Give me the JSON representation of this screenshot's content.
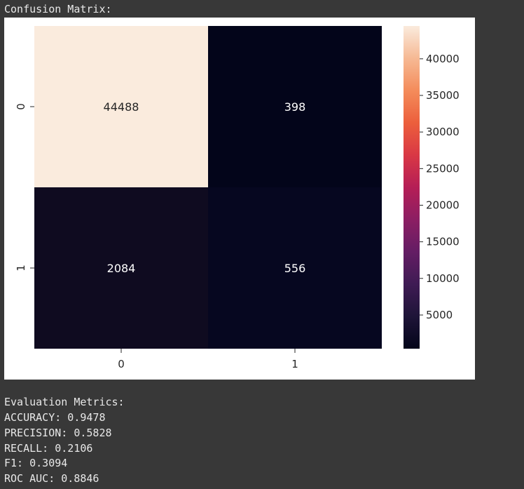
{
  "output": {
    "heading": "Confusion Matrix:",
    "metrics_heading": "Evaluation Metrics:",
    "metrics": [
      "ACCURACY: 0.9478",
      "PRECISION: 0.5828",
      "RECALL: 0.2106",
      "F1: 0.3094",
      "ROC AUC: 0.8846"
    ]
  },
  "chart_data": {
    "type": "heatmap",
    "title": "",
    "xlabel": "",
    "ylabel": "",
    "x_categories": [
      "0",
      "1"
    ],
    "y_categories": [
      "0",
      "1"
    ],
    "values": [
      [
        44488,
        398
      ],
      [
        2084,
        556
      ]
    ],
    "colormap": "rocket",
    "colorbar": {
      "range": [
        398,
        44488
      ],
      "ticks": [
        5000,
        10000,
        15000,
        20000,
        25000,
        30000,
        35000,
        40000
      ]
    },
    "grid": false,
    "colors": {
      "cell_0_0": "#faebdd",
      "cell_0_1": "#03051a",
      "cell_1_0": "#0f0b20",
      "cell_1_1": "#060720"
    }
  }
}
